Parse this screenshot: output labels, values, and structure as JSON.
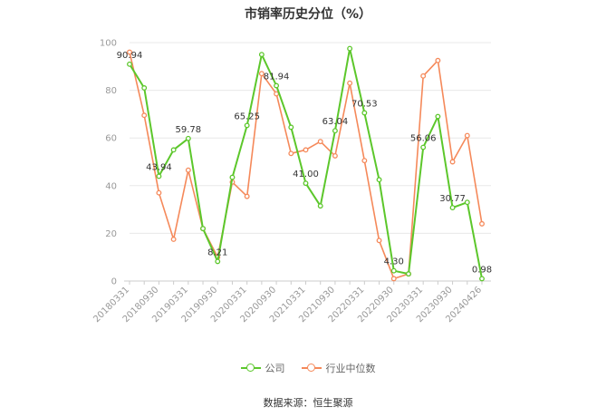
{
  "chart_data": {
    "type": "line",
    "title": "市销率历史分位（%）",
    "ylim": [
      0,
      100
    ],
    "yticks": [
      0,
      20,
      40,
      60,
      80,
      100
    ],
    "grid": true,
    "legend_position": "bottom",
    "x": [
      "20180331",
      "20180630",
      "20180930",
      "20181231",
      "20190331",
      "20190630",
      "20190930",
      "20191231",
      "20200331",
      "20200630",
      "20200930",
      "20201231",
      "20210331",
      "20210630",
      "20210930",
      "20211231",
      "20220331",
      "20220630",
      "20220930",
      "20221231",
      "20230331",
      "20230630",
      "20230930",
      "20231231",
      "20240426"
    ],
    "x_tick_labels": [
      "20180331",
      "20180930",
      "20190331",
      "20190930",
      "20200331",
      "20200930",
      "20210331",
      "20210930",
      "20220331",
      "20220930",
      "20230331",
      "20230930",
      "20240426"
    ],
    "series": [
      {
        "name": "公司",
        "color": "#5cc72b",
        "values": [
          90.94,
          81,
          43.94,
          55,
          59.78,
          22,
          8.21,
          43.5,
          65.25,
          95,
          81.94,
          64.5,
          41.0,
          31.5,
          63.04,
          97.5,
          70.53,
          42.5,
          4.3,
          3,
          56.06,
          69,
          30.77,
          33,
          0.98
        ],
        "labels": {
          "0": "90.94",
          "2": "43.94",
          "4": "59.78",
          "6": "8.21",
          "8": "65.25",
          "10": "81.94",
          "12": "41.00",
          "14": "63.04",
          "16": "70.53",
          "18": "4.30",
          "20": "56.06",
          "22": "30.77",
          "24": "0.98"
        }
      },
      {
        "name": "行业中位数",
        "color": "#f5895a",
        "values": [
          96,
          69.5,
          37,
          17.5,
          46.5,
          22,
          10,
          41.5,
          35.5,
          87,
          78.5,
          53.5,
          55,
          58.5,
          52.5,
          83,
          50.5,
          17,
          1,
          3,
          86,
          92.5,
          50,
          61,
          24
        ]
      }
    ]
  },
  "source": "数据来源：恒生聚源"
}
